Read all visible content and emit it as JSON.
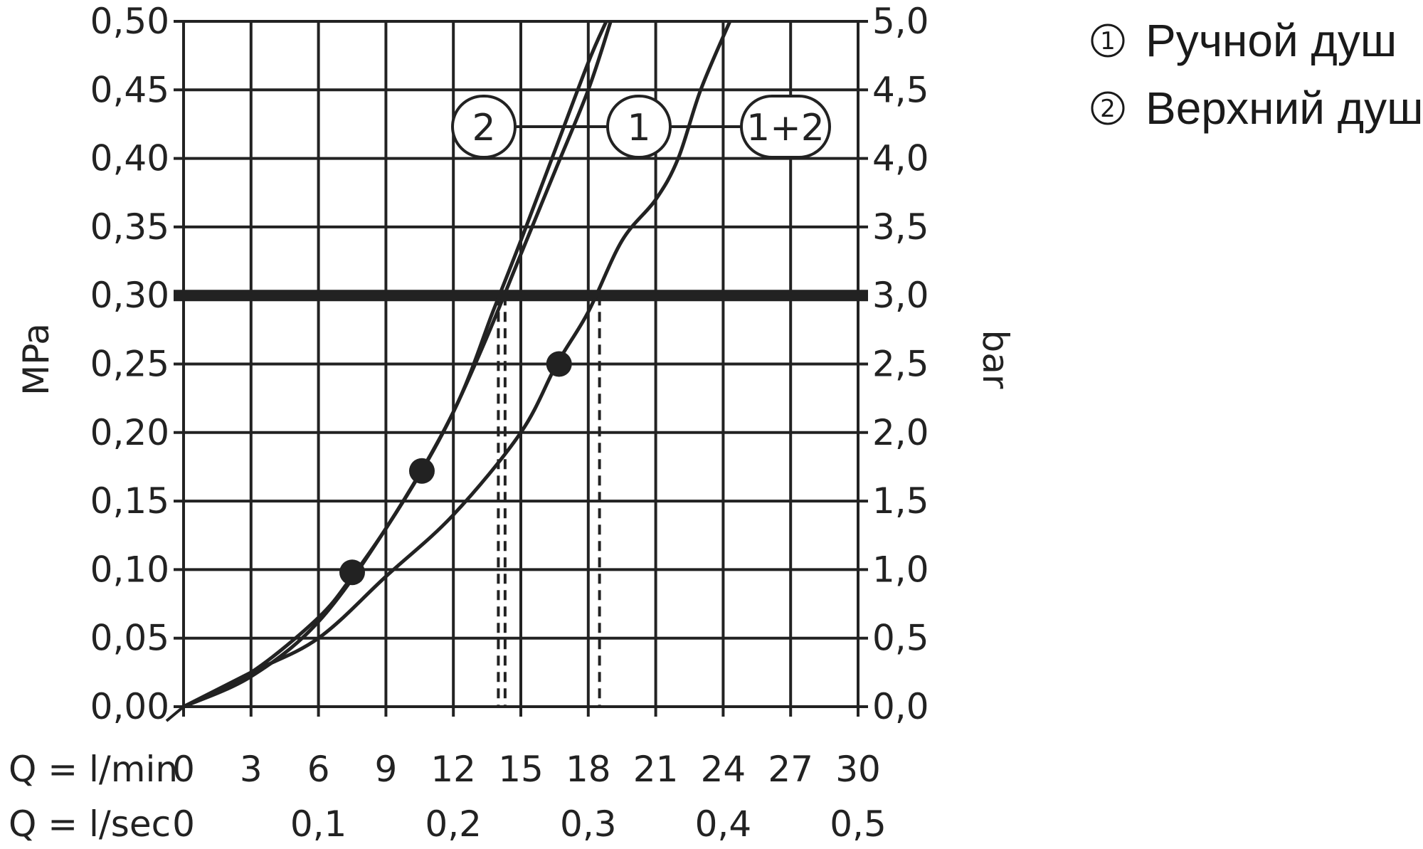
{
  "chart_data": {
    "type": "line",
    "title": "",
    "y_left": {
      "label": "MPa",
      "ticks": [
        "0,00",
        "0,05",
        "0,10",
        "0,15",
        "0,20",
        "0,25",
        "0,30",
        "0,35",
        "0,40",
        "0,45",
        "0,50"
      ],
      "range": [
        0,
        0.5
      ]
    },
    "y_right": {
      "label": "bar",
      "ticks": [
        "0,0",
        "0,5",
        "1,0",
        "1,5",
        "2,0",
        "2,5",
        "3,0",
        "3,5",
        "4,0",
        "4,5",
        "5,0"
      ],
      "range": [
        0,
        5
      ]
    },
    "x_lmin": {
      "label": "Q = l/min",
      "ticks": [
        "0",
        "3",
        "6",
        "9",
        "12",
        "15",
        "18",
        "21",
        "24",
        "27",
        "30"
      ],
      "range": [
        0,
        30
      ]
    },
    "x_lsec": {
      "label": "Q = l/sec",
      "ticks": [
        "0",
        "0,1",
        "0,2",
        "0,3",
        "0,4",
        "0,5"
      ]
    },
    "grid": true,
    "reference_line": {
      "y_mpa": 0.3
    },
    "series": [
      {
        "name": "1",
        "x_lmin": [
          0,
          3,
          6,
          7.5,
          9,
          10.7,
          12,
          13.5,
          15,
          16.5,
          18,
          19
        ],
        "y_mpa": [
          0,
          0.025,
          0.065,
          0.095,
          0.13,
          0.175,
          0.215,
          0.27,
          0.33,
          0.39,
          0.45,
          0.5
        ],
        "markers": [
          {
            "x_lmin": 7.5,
            "y_mpa": 0.098
          },
          {
            "x_lmin": 10.6,
            "y_mpa": 0.172
          }
        ],
        "flow_at_0_3_mpa": 14.3
      },
      {
        "name": "2",
        "x_lmin": [
          0,
          3,
          6,
          9,
          12,
          13.8,
          15,
          16.5,
          18,
          18.8
        ],
        "y_mpa": [
          0,
          0.022,
          0.062,
          0.13,
          0.215,
          0.29,
          0.34,
          0.405,
          0.47,
          0.5
        ],
        "markers": [],
        "flow_at_0_3_mpa": 14.0
      },
      {
        "name": "1+2",
        "x_lmin": [
          0,
          3,
          6,
          9,
          12,
          15,
          16.6,
          18,
          19.5,
          21,
          22,
          23,
          24.3
        ],
        "y_mpa": [
          0,
          0.025,
          0.05,
          0.095,
          0.14,
          0.2,
          0.25,
          0.288,
          0.34,
          0.37,
          0.4,
          0.45,
          0.5
        ],
        "markers": [
          {
            "x_lmin": 16.7,
            "y_mpa": 0.25
          }
        ],
        "flow_at_0_3_mpa": 18.5
      }
    ],
    "curve_labels": [
      {
        "text": "2",
        "series": "2"
      },
      {
        "text": "1",
        "series": "1"
      },
      {
        "text": "1+2",
        "series": "1+2"
      }
    ],
    "legend": {
      "position": "top-right",
      "entries": [
        {
          "number": "1",
          "text": "Ручной душ"
        },
        {
          "number": "2",
          "text": "Верхний душ"
        }
      ]
    },
    "colors": {
      "line": "#222222",
      "grid": "#222222",
      "background": "#ffffff"
    }
  }
}
